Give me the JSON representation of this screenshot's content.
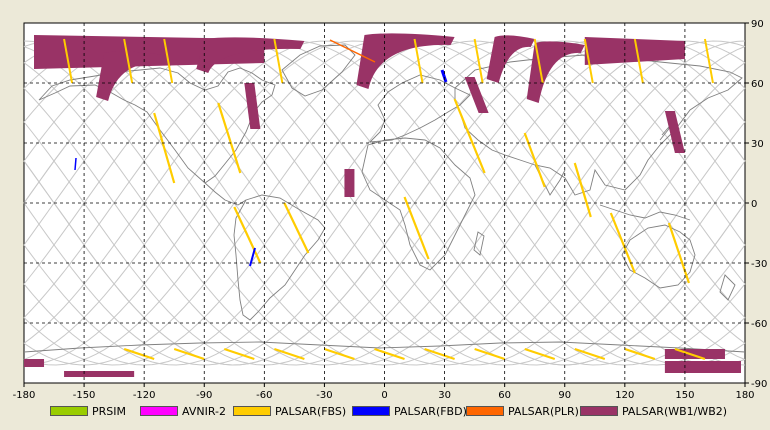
{
  "map": {
    "lon_ticks": [
      "-180",
      "-150",
      "-120",
      "-90",
      "-60",
      "-30",
      "0",
      "30",
      "60",
      "90",
      "120",
      "150",
      "180"
    ],
    "lat_ticks": [
      "90",
      "60",
      "30",
      "0",
      "-30",
      "-60",
      "-90"
    ],
    "lon_range": [
      -180,
      180
    ],
    "lat_range": [
      -90,
      90
    ],
    "grid": "dashed",
    "background": "#ffffff",
    "coastline_color": "#808080",
    "orbit_color": "#c8c8c8"
  },
  "legend": [
    {
      "label": "PRSIM",
      "color": "#99cc00"
    },
    {
      "label": "AVNIR-2",
      "color": "#ff00ff"
    },
    {
      "label": "PALSAR(FBS)",
      "color": "#ffcc00"
    },
    {
      "label": "PALSAR(FBD)",
      "color": "#0000ff"
    },
    {
      "label": "PALSAR(PLR)",
      "color": "#ff6600"
    },
    {
      "label": "PALSAR(WB1/WB2)",
      "color": "#993366"
    }
  ],
  "wb_swaths": [
    {
      "lon": [
        -175,
        -60
      ],
      "lat": [
        84,
        70
      ],
      "kind": "band"
    },
    {
      "lon": [
        -140,
        -110
      ],
      "lat": [
        75,
        51
      ],
      "kind": "arc"
    },
    {
      "lon": [
        -90,
        -40
      ],
      "lat": [
        82,
        65
      ],
      "kind": "arc"
    },
    {
      "lon": [
        -70,
        -62
      ],
      "lat": [
        60,
        37
      ],
      "kind": "strip"
    },
    {
      "lon": [
        -10,
        35
      ],
      "lat": [
        84,
        57
      ],
      "kind": "arc"
    },
    {
      "lon": [
        40,
        52
      ],
      "lat": [
        63,
        45
      ],
      "kind": "strip"
    },
    {
      "lon": [
        55,
        75
      ],
      "lat": [
        83,
        60
      ],
      "kind": "arc"
    },
    {
      "lon": [
        75,
        100
      ],
      "lat": [
        80,
        50
      ],
      "kind": "arc"
    },
    {
      "lon": [
        100,
        150
      ],
      "lat": [
        83,
        72
      ],
      "kind": "band"
    },
    {
      "lon": [
        -20,
        -15
      ],
      "lat": [
        17,
        3
      ],
      "kind": "strip"
    },
    {
      "lon": [
        140,
        150
      ],
      "lat": [
        46,
        25
      ],
      "kind": "strip"
    }
  ],
  "fbs_tracks": [
    {
      "lon": [
        -115,
        -105
      ],
      "lat": [
        45,
        10
      ]
    },
    {
      "lon": [
        -83,
        -72
      ],
      "lat": [
        50,
        15
      ]
    },
    {
      "lon": [
        -75,
        -62
      ],
      "lat": [
        -2,
        -30
      ]
    },
    {
      "lon": [
        -50,
        -38
      ],
      "lat": [
        0,
        -25
      ]
    },
    {
      "lon": [
        10,
        22
      ],
      "lat": [
        3,
        -28
      ]
    },
    {
      "lon": [
        35,
        50
      ],
      "lat": [
        52,
        15
      ]
    },
    {
      "lon": [
        70,
        80
      ],
      "lat": [
        35,
        8
      ]
    },
    {
      "lon": [
        95,
        103
      ],
      "lat": [
        20,
        -7
      ]
    },
    {
      "lon": [
        113,
        125
      ],
      "lat": [
        -5,
        -35
      ]
    },
    {
      "lon": [
        142,
        152
      ],
      "lat": [
        -10,
        -40
      ]
    }
  ]
}
